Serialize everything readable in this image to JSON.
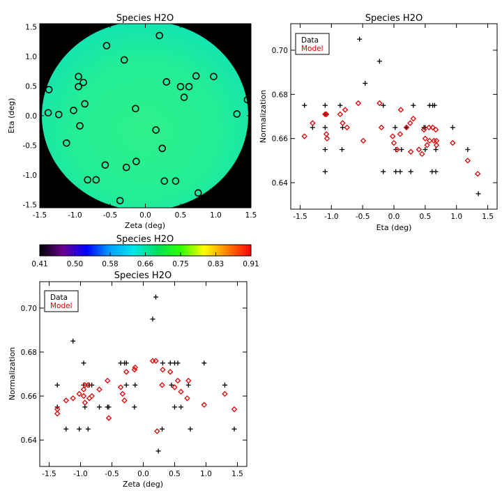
{
  "chart_data": [
    {
      "id": "map",
      "type": "heatmap",
      "title": "Species H2O",
      "xlabel": "Zeta (deg)",
      "ylabel": "Eta (deg)",
      "xlim": [
        -1.5,
        1.5
      ],
      "ylim": [
        -1.55,
        1.55
      ],
      "xticks": [
        -1.5,
        -1.0,
        -0.5,
        0.0,
        0.5,
        1.0,
        1.5
      ],
      "xtick_labels": [
        "-1.5",
        "-1.0",
        "-0.5",
        "0.0",
        "0.5",
        "1.0",
        "1.5"
      ],
      "yticks": [
        -1.5,
        -1.0,
        -0.5,
        0.0,
        0.5,
        1.0,
        1.5
      ],
      "ytick_labels": [
        "-1.5",
        "-1.0",
        "-0.5",
        "0.0",
        "0.5",
        "1.0",
        "1.5"
      ],
      "background_color": "#000000",
      "field_color": "#22f08c",
      "field_value_approx": 0.66,
      "markers": "circles",
      "points": [
        [
          -0.55,
          1.18
        ],
        [
          0.2,
          1.35
        ],
        [
          -0.3,
          0.94
        ],
        [
          -1.37,
          0.44
        ],
        [
          -0.95,
          0.66
        ],
        [
          -0.95,
          0.49
        ],
        [
          -0.88,
          0.56
        ],
        [
          0.3,
          0.57
        ],
        [
          0.5,
          0.49
        ],
        [
          0.62,
          0.49
        ],
        [
          0.72,
          0.67
        ],
        [
          0.55,
          0.31
        ],
        [
          0.97,
          0.66
        ],
        [
          1.45,
          0.27
        ],
        [
          1.3,
          0.03
        ],
        [
          -0.86,
          0.2
        ],
        [
          -0.14,
          0.12
        ],
        [
          -1.02,
          0.09
        ],
        [
          -1.38,
          0.05
        ],
        [
          -1.23,
          0.02
        ],
        [
          -0.93,
          -0.17
        ],
        [
          -1.12,
          -0.46
        ],
        [
          0.15,
          -0.24
        ],
        [
          0.24,
          -0.55
        ],
        [
          -0.57,
          -0.83
        ],
        [
          -0.27,
          -0.87
        ],
        [
          -0.13,
          -0.77
        ],
        [
          -0.82,
          -1.08
        ],
        [
          -0.7,
          -1.08
        ],
        [
          0.27,
          -1.1
        ],
        [
          0.43,
          -1.1
        ],
        [
          0.75,
          -1.3
        ],
        [
          -0.36,
          -1.43
        ]
      ]
    },
    {
      "id": "colorbar",
      "type": "heatmap",
      "title": "Species H2O",
      "range": [
        0.41,
        0.91
      ],
      "tick_labels": [
        "0.41",
        "0.50",
        "0.58",
        "0.66",
        "0.75",
        "0.83",
        "0.91"
      ],
      "colormap": [
        "#000000",
        "#6a0090",
        "#0000ff",
        "#00a0ff",
        "#00e8e8",
        "#00e060",
        "#30ff00",
        "#ffff00",
        "#ff8000",
        "#ff0000"
      ]
    },
    {
      "id": "eta",
      "type": "scatter",
      "title": "Species H2O",
      "xlabel": "Eta (deg)",
      "ylabel": "Normalization",
      "xlim": [
        -1.65,
        1.65
      ],
      "ylim": [
        0.628,
        0.712
      ],
      "xticks": [
        -1.5,
        -1.0,
        -0.5,
        0.0,
        0.5,
        1.0,
        1.5
      ],
      "xtick_labels": [
        "-1.5",
        "-1.0",
        "-0.5",
        "0.0",
        "0.5",
        "1.0",
        "1.5"
      ],
      "yticks": [
        0.64,
        0.66,
        0.68,
        0.7
      ],
      "ytick_labels": [
        "0.64",
        "0.66",
        "0.68",
        "0.70"
      ],
      "legend": [
        "Data",
        "Model"
      ],
      "legend_placement": "top-left",
      "series": [
        {
          "name": "Data",
          "color": "#000000",
          "marker": "plus",
          "points": [
            [
              -1.43,
              0.675
            ],
            [
              -1.3,
              0.665
            ],
            [
              -1.1,
              0.675
            ],
            [
              -1.1,
              0.671
            ],
            [
              -1.1,
              0.665
            ],
            [
              -1.1,
              0.655
            ],
            [
              -1.1,
              0.645
            ],
            [
              -0.86,
              0.675
            ],
            [
              -0.82,
              0.665
            ],
            [
              -0.83,
              0.655
            ],
            [
              -0.55,
              0.705
            ],
            [
              -0.46,
              0.685
            ],
            [
              -0.23,
              0.695
            ],
            [
              -0.17,
              0.675
            ],
            [
              -0.17,
              0.645
            ],
            [
              0.02,
              0.665
            ],
            [
              0.03,
              0.655
            ],
            [
              0.03,
              0.645
            ],
            [
              0.12,
              0.655
            ],
            [
              0.1,
              0.645
            ],
            [
              0.2,
              0.665
            ],
            [
              0.27,
              0.645
            ],
            [
              0.31,
              0.675
            ],
            [
              0.48,
              0.665
            ],
            [
              0.5,
              0.665
            ],
            [
              0.5,
              0.655
            ],
            [
              0.57,
              0.675
            ],
            [
              0.62,
              0.675
            ],
            [
              0.65,
              0.675
            ],
            [
              0.61,
              0.645
            ],
            [
              0.67,
              0.655
            ],
            [
              0.67,
              0.645
            ],
            [
              0.94,
              0.665
            ],
            [
              1.18,
              0.655
            ],
            [
              1.35,
              0.635
            ]
          ]
        },
        {
          "name": "Model",
          "color": "#e00000",
          "marker": "diamond",
          "points": [
            [
              -1.43,
              0.661
            ],
            [
              -1.3,
              0.667
            ],
            [
              -1.1,
              0.671
            ],
            [
              -1.08,
              0.662
            ],
            [
              -1.07,
              0.66
            ],
            [
              -1.08,
              0.671
            ],
            [
              -0.86,
              0.671
            ],
            [
              -0.82,
              0.667
            ],
            [
              -0.78,
              0.673
            ],
            [
              -0.75,
              0.665
            ],
            [
              -0.57,
              0.676
            ],
            [
              -0.49,
              0.659
            ],
            [
              -0.23,
              0.676
            ],
            [
              -0.2,
              0.665
            ],
            [
              -0.02,
              0.661
            ],
            [
              0.0,
              0.658
            ],
            [
              0.05,
              0.655
            ],
            [
              0.1,
              0.662
            ],
            [
              0.11,
              0.673
            ],
            [
              0.2,
              0.665
            ],
            [
              0.26,
              0.667
            ],
            [
              0.27,
              0.654
            ],
            [
              0.31,
              0.669
            ],
            [
              0.4,
              0.655
            ],
            [
              0.45,
              0.653
            ],
            [
              0.48,
              0.664
            ],
            [
              0.5,
              0.66
            ],
            [
              0.53,
              0.657
            ],
            [
              0.56,
              0.665
            ],
            [
              0.57,
              0.659
            ],
            [
              0.62,
              0.665
            ],
            [
              0.64,
              0.659
            ],
            [
              0.67,
              0.664
            ],
            [
              0.68,
              0.659
            ],
            [
              0.68,
              0.657
            ],
            [
              0.94,
              0.658
            ],
            [
              1.18,
              0.65
            ],
            [
              1.34,
              0.644
            ]
          ]
        }
      ]
    },
    {
      "id": "zeta",
      "type": "scatter",
      "title": "Species H2O",
      "xlabel": "Zeta (deg)",
      "ylabel": "Normalization",
      "xlim": [
        -1.65,
        1.65
      ],
      "ylim": [
        0.628,
        0.712
      ],
      "xticks": [
        -1.5,
        -1.0,
        -0.5,
        0.0,
        0.5,
        1.0,
        1.5
      ],
      "xtick_labels": [
        "-1.5",
        "-1.0",
        "-0.5",
        "0.0",
        "0.5",
        "1.0",
        "1.5"
      ],
      "yticks": [
        0.64,
        0.66,
        0.68,
        0.7
      ],
      "ytick_labels": [
        "0.64",
        "0.66",
        "0.68",
        "0.70"
      ],
      "legend": [
        "Data",
        "Model"
      ],
      "legend_placement": "top-left",
      "series": [
        {
          "name": "Data",
          "color": "#000000",
          "marker": "plus",
          "points": [
            [
              -1.37,
              0.665
            ],
            [
              -1.37,
              0.655
            ],
            [
              -1.23,
              0.645
            ],
            [
              -1.12,
              0.685
            ],
            [
              -1.02,
              0.645
            ],
            [
              -0.95,
              0.675
            ],
            [
              -0.95,
              0.665
            ],
            [
              -0.93,
              0.655
            ],
            [
              -0.88,
              0.645
            ],
            [
              -0.86,
              0.665
            ],
            [
              -0.82,
              0.665
            ],
            [
              -0.7,
              0.655
            ],
            [
              -0.57,
              0.655
            ],
            [
              -0.55,
              0.655
            ],
            [
              -0.36,
              0.675
            ],
            [
              -0.3,
              0.675
            ],
            [
              -0.27,
              0.675
            ],
            [
              -0.27,
              0.665
            ],
            [
              -0.13,
              0.665
            ],
            [
              -0.14,
              0.655
            ],
            [
              0.15,
              0.695
            ],
            [
              0.2,
              0.705
            ],
            [
              0.24,
              0.635
            ],
            [
              0.3,
              0.645
            ],
            [
              0.31,
              0.675
            ],
            [
              0.43,
              0.675
            ],
            [
              0.5,
              0.675
            ],
            [
              0.55,
              0.675
            ],
            [
              0.45,
              0.665
            ],
            [
              0.5,
              0.655
            ],
            [
              0.6,
              0.655
            ],
            [
              0.72,
              0.665
            ],
            [
              0.97,
              0.675
            ],
            [
              1.3,
              0.665
            ],
            [
              1.45,
              0.645
            ],
            [
              0.75,
              0.645
            ]
          ]
        },
        {
          "name": "Model",
          "color": "#e00000",
          "marker": "diamond",
          "points": [
            [
              -1.37,
              0.654
            ],
            [
              -1.37,
              0.652
            ],
            [
              -1.23,
              0.658
            ],
            [
              -1.12,
              0.659
            ],
            [
              -1.02,
              0.661
            ],
            [
              -0.95,
              0.663
            ],
            [
              -0.95,
              0.66
            ],
            [
              -0.93,
              0.657
            ],
            [
              -0.93,
              0.665
            ],
            [
              -0.88,
              0.665
            ],
            [
              -0.86,
              0.659
            ],
            [
              -0.82,
              0.66
            ],
            [
              -0.7,
              0.663
            ],
            [
              -0.57,
              0.667
            ],
            [
              -0.55,
              0.65
            ],
            [
              -0.36,
              0.664
            ],
            [
              -0.33,
              0.661
            ],
            [
              -0.3,
              0.658
            ],
            [
              -0.27,
              0.671
            ],
            [
              -0.13,
              0.673
            ],
            [
              -0.14,
              0.672
            ],
            [
              0.15,
              0.676
            ],
            [
              0.2,
              0.676
            ],
            [
              0.22,
              0.644
            ],
            [
              0.3,
              0.665
            ],
            [
              0.31,
              0.672
            ],
            [
              0.43,
              0.671
            ],
            [
              0.5,
              0.664
            ],
            [
              0.55,
              0.667
            ],
            [
              0.6,
              0.662
            ],
            [
              0.7,
              0.659
            ],
            [
              0.72,
              0.667
            ],
            [
              0.97,
              0.656
            ],
            [
              1.3,
              0.661
            ],
            [
              1.45,
              0.654
            ]
          ]
        }
      ]
    }
  ]
}
